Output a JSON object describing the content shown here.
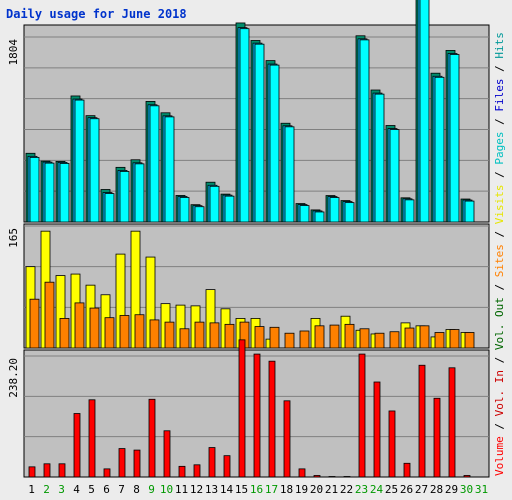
{
  "chart_data": {
    "type": "bar",
    "title": "Daily usage for June 2018",
    "categories": [
      "1",
      "2",
      "3",
      "4",
      "5",
      "6",
      "7",
      "8",
      "9",
      "10",
      "11",
      "12",
      "13",
      "14",
      "15",
      "16",
      "17",
      "18",
      "19",
      "20",
      "21",
      "22",
      "23",
      "24",
      "25",
      "26",
      "27",
      "28",
      "29",
      "30",
      "31"
    ],
    "weekend_days": [
      "2",
      "3",
      "9",
      "10",
      "16",
      "17",
      "23",
      "24",
      "30",
      "31"
    ],
    "panels": [
      {
        "id": "top",
        "ymax": 1804,
        "ymax_label": "1804",
        "series": [
          {
            "name": "Hits",
            "color": "#00c0c0",
            "values": [
              670,
              594,
              591,
              1229,
              1037,
              317,
              533,
              607,
              1176,
              1065,
              259,
              169,
              388,
              272,
              1941,
              1770,
              1574,
              963,
              180,
              118,
              258,
              209,
              1816,
              1287,
              941,
              236,
              2318,
              1451,
              1673,
              224,
              null
            ]
          },
          {
            "name": "Files",
            "color": "#00c0ff",
            "values": [
              640,
              584,
              581,
              1199,
              1017,
              287,
              503,
              577,
              1143,
              1035,
              249,
              159,
              358,
              262,
              1895,
              1744,
              1540,
              938,
              170,
              108,
              248,
              199,
              1786,
              1257,
              911,
              226,
              2288,
              1421,
              1643,
              214,
              null
            ]
          },
          {
            "name": "Pages",
            "color": "#00ffff",
            "values": [
              630,
              574,
              571,
              1189,
              1007,
              277,
              493,
              567,
              1133,
              1025,
              239,
              149,
              348,
              252,
              1885,
              1734,
              1530,
              928,
              160,
              98,
              238,
              189,
              1776,
              1247,
              901,
              216,
              2278,
              1411,
              1633,
              204,
              null
            ]
          }
        ]
      },
      {
        "id": "mid",
        "ymax": 165,
        "ymax_label": "165",
        "series": [
          {
            "name": "Visits",
            "color": "#ffff00",
            "values": [
              110,
              158,
              98,
              100,
              85,
              72,
              127,
              158,
              123,
              60,
              58,
              57,
              79,
              53,
              40,
              40,
              12,
              0,
              0,
              40,
              0,
              43,
              24,
              19,
              0,
              34,
              30,
              15,
              25,
              21,
              null
            ]
          },
          {
            "name": "Sites",
            "color": "#ff8000",
            "values": [
              66,
              89,
              40,
              61,
              54,
              41,
              44,
              45,
              38,
              35,
              26,
              35,
              34,
              32,
              35,
              29,
              28,
              20,
              23,
              30,
              31,
              32,
              26,
              20,
              22,
              27,
              30,
              21,
              25,
              21,
              null
            ]
          }
        ]
      },
      {
        "id": "bot",
        "ymax": 238.2,
        "ymax_label": "238.20",
        "series": [
          {
            "name": "Volume",
            "color": "#ff0000",
            "values": [
              20,
              26,
              26,
              125,
              152,
              16,
              56,
              53,
              153,
              91,
              21,
              24,
              58,
              42,
              270,
              242,
              228,
              150,
              16,
              3,
              1,
              1,
              242,
              187,
              130,
              27,
              220,
              155,
              215,
              3,
              null
            ]
          }
        ]
      }
    ],
    "right_legend": [
      {
        "text": "Volume",
        "color": "#ff0000"
      },
      {
        "text": " / ",
        "color": "#000000"
      },
      {
        "text": "Vol. In",
        "color": "#cc0000"
      },
      {
        "text": " / ",
        "color": "#000000"
      },
      {
        "text": "Vol. Out",
        "color": "#006600"
      },
      {
        "text": " / ",
        "color": "#000000"
      },
      {
        "text": "Sites",
        "color": "#ff8000"
      },
      {
        "text": " / ",
        "color": "#000000"
      },
      {
        "text": "Visits",
        "color": "#e6e600"
      },
      {
        "text": " / ",
        "color": "#000000"
      },
      {
        "text": "Pages",
        "color": "#00c0c0"
      },
      {
        "text": " / ",
        "color": "#000000"
      },
      {
        "text": "Files",
        "color": "#0000cc"
      },
      {
        "text": " / ",
        "color": "#000000"
      },
      {
        "text": "Hits",
        "color": "#009999"
      }
    ],
    "colors": {
      "page_bg": "#ececec",
      "plot_bg": "#c0c0c0",
      "grid": "#808080",
      "title": "#0033cc",
      "weekday_label": "#000000",
      "weekend_label": "#009900"
    }
  }
}
